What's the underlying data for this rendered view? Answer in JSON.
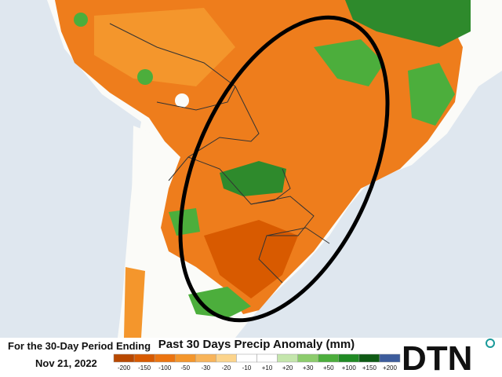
{
  "caption": {
    "period_line": "For the 30-Day Period Ending",
    "date": "Nov 21, 2022"
  },
  "legend": {
    "title": "Past 30 Days Precip Anomaly (mm)",
    "items": [
      {
        "label": "-200",
        "color": "#b84800"
      },
      {
        "label": "-150",
        "color": "#d85a00"
      },
      {
        "label": "-100",
        "color": "#ec7410"
      },
      {
        "label": "-50",
        "color": "#f4962c"
      },
      {
        "label": "-30",
        "color": "#f8b45a"
      },
      {
        "label": "-20",
        "color": "#fcd48c"
      },
      {
        "label": "-10",
        "color": "#ffffff"
      },
      {
        "label": "+10",
        "color": "#ffffff"
      },
      {
        "label": "+20",
        "color": "#c4e6ac"
      },
      {
        "label": "+30",
        "color": "#8ccc6c"
      },
      {
        "label": "+50",
        "color": "#4cae3c"
      },
      {
        "label": "+100",
        "color": "#208a24"
      },
      {
        "label": "+150",
        "color": "#0e5a14"
      },
      {
        "label": "+200",
        "color": "#3c5c9c"
      }
    ]
  },
  "logo": {
    "text": "DTN"
  }
}
